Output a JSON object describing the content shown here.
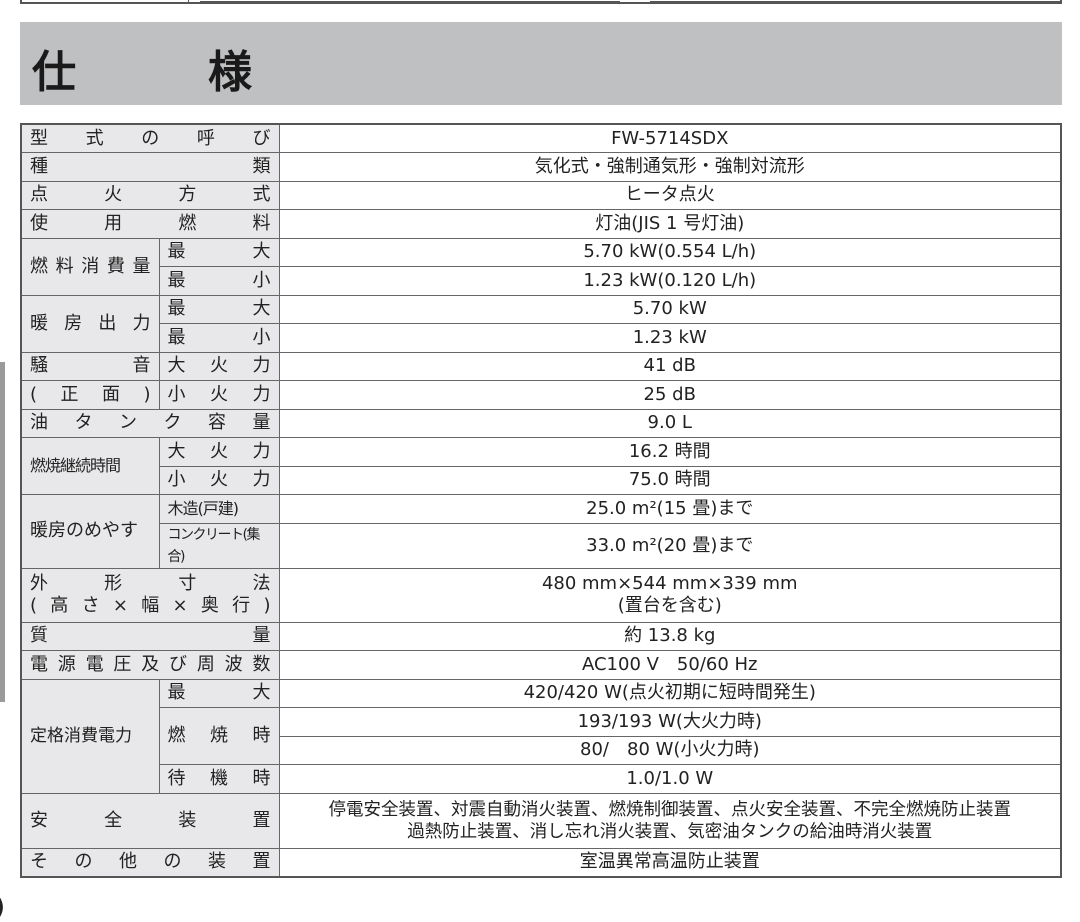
{
  "title": "仕　様",
  "rows": {
    "model": {
      "label": "型式の呼び",
      "value": "FW-5714SDX"
    },
    "type": {
      "label": "種類",
      "value": "気化式・強制通気形・強制対流形"
    },
    "ignition": {
      "label": "点火方式",
      "value": "ヒータ点火"
    },
    "fuel": {
      "label": "使用燃料",
      "value": "灯油(JIS 1 号灯油)"
    },
    "fuel_consumption": {
      "label": "燃料消費量",
      "max_label": "最大",
      "max": "5.70 kW(0.554 L/h)",
      "min_label": "最小",
      "min": "1.23 kW(0.120 L/h)"
    },
    "heat_output": {
      "label": "暖房出力",
      "max_label": "最大",
      "max": "5.70 kW",
      "min_label": "最小",
      "min": "1.23 kW"
    },
    "noise": {
      "label1": "騒音",
      "label2": "(正面)",
      "high_label": "大火力",
      "high": "41 dB",
      "low_label": "小火力",
      "low": "25 dB"
    },
    "tank": {
      "label": "油タンク容量",
      "value": "9.0 L"
    },
    "burn_time": {
      "label": "燃焼継続時間",
      "high_label": "大火力",
      "high": "16.2 時間",
      "low_label": "小火力",
      "low": "75.0 時間"
    },
    "heating_area": {
      "label": "暖房のめやす",
      "wood_label": "木造(戸建)",
      "wood": "25.0 m²(15 畳)まで",
      "concrete_label": "コンクリート(集合)",
      "concrete": "33.0 m²(20 畳)まで"
    },
    "dimensions": {
      "label1": "外形寸法",
      "label2": "(高さ×幅×奥行)",
      "value1": "480 mm×544 mm×339 mm",
      "value2": "(置台を含む)"
    },
    "mass": {
      "label": "質量",
      "value": "約 13.8 kg"
    },
    "power_supply": {
      "label": "電源電圧及び周波数",
      "value": "AC100 V　50/60 Hz"
    },
    "rated_power": {
      "label": "定格消費電力",
      "max_label": "最大",
      "max": "420/420 W(点火初期に短時間発生)",
      "burning_label": "燃焼時",
      "burning_high": "193/193 W(大火力時)",
      "burning_low": "80/　80 W(小火力時)",
      "standby_label": "待機時",
      "standby": "1.0/1.0 W"
    },
    "safety": {
      "label": "安全装置",
      "value1": "停電安全装置、対震自動消火装置、燃焼制御装置、点火安全装置、不完全燃焼防止装置",
      "value2": "過熱防止装置、消し忘れ消火装置、気密油タンクの給油時消火装置"
    },
    "other": {
      "label": "その他の装置",
      "value": "室温異常高温防止装置"
    }
  }
}
